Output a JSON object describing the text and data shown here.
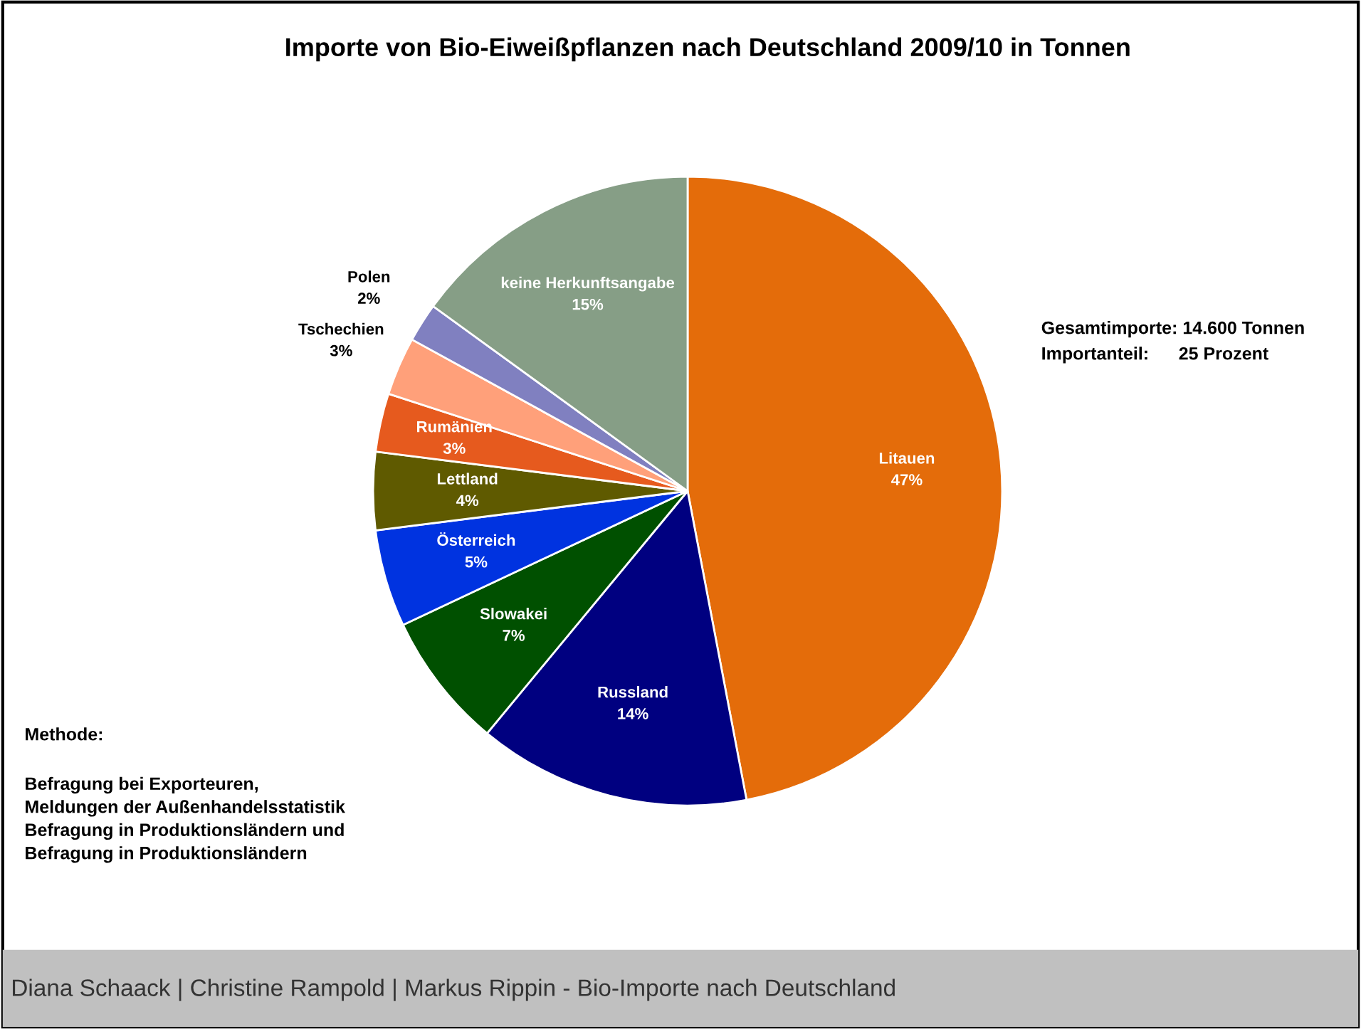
{
  "chart_data": {
    "type": "pie",
    "title": "Importe von Bio-Eiweißpflanzen nach Deutschland 2009/10 in Tonnen",
    "categories": [
      "Litauen",
      "Russland",
      "Slowakei",
      "Österreich",
      "Lettland",
      "Rumänien",
      "Tschechien",
      "Polen",
      "keine Herkunftsangabe"
    ],
    "values": [
      47,
      14,
      7,
      5,
      4,
      3,
      3,
      2,
      15
    ],
    "value_labels": [
      "47%",
      "14%",
      "7%",
      "5%",
      "4%",
      "3%",
      "3%",
      "2%",
      "15%"
    ],
    "colors": [
      "#e46c0a",
      "#000080",
      "#005000",
      "#0033e0",
      "#5f5a00",
      "#e65a1e",
      "#ffa07a",
      "#8080c0",
      "#869e86"
    ],
    "annotations": [
      "Gesamtimporte: 14.600 Tonnen",
      "Importanteil:      25 Prozent",
      "Methode:",
      "Befragung bei Exporteuren,\nMeldungen der Außenhandelsstatistik\nBefragung in Produktionsländern und\nBefragung in Produktionsländern",
      "Diana Schaack | Christine Rampold | Markus Rippin - Bio-Importe nach Deutschland"
    ]
  }
}
